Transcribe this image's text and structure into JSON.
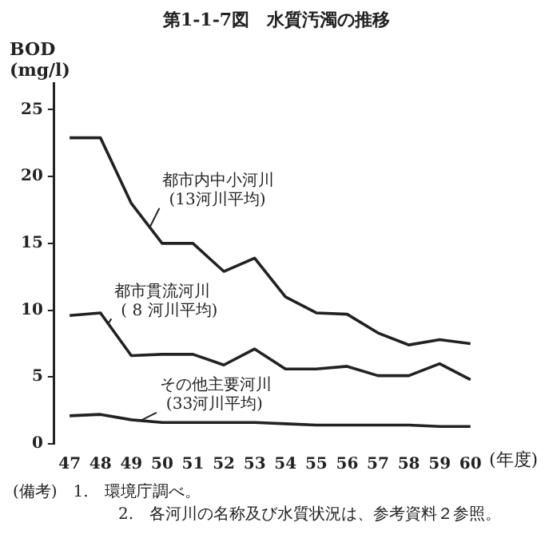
{
  "chart_data": {
    "type": "line",
    "title": "第1-1-7図　水質汚濁の推移",
    "ylabel": "BOD\n(mg/l)",
    "xlabel": "(年度)",
    "categories": [
      "47",
      "48",
      "49",
      "50",
      "51",
      "52",
      "53",
      "54",
      "55",
      "56",
      "57",
      "58",
      "59",
      "60"
    ],
    "series": [
      {
        "name": "都市内中小河川\n(13河川平均)",
        "color": "#222222",
        "values": [
          22.9,
          22.9,
          18,
          15,
          15,
          12.9,
          13.9,
          11,
          9.8,
          9.7,
          8.3,
          7.4,
          7.8,
          7.5
        ]
      },
      {
        "name": "都市貫流河川\n( 8 河川平均)",
        "color": "#222222",
        "values": [
          9.6,
          9.8,
          6.6,
          6.7,
          6.7,
          5.9,
          7.1,
          5.6,
          5.6,
          5.8,
          5.1,
          5.1,
          6.0,
          4.8
        ]
      },
      {
        "name": "その他主要河川\n(33河川平均)",
        "color": "#222222",
        "values": [
          2.1,
          2.2,
          1.8,
          1.6,
          1.6,
          1.6,
          1.6,
          1.5,
          1.4,
          1.4,
          1.4,
          1.4,
          1.3,
          1.3
        ]
      }
    ],
    "ylim": [
      0,
      27
    ],
    "yticks": [
      0,
      5,
      10,
      15,
      20,
      25
    ],
    "grid": false,
    "legend": false,
    "marker": "none",
    "line_style": "solid",
    "annotations": [
      "(備考)　1.　環境庁調べ。",
      "2.　各河川の名称及び水質状況は、参考資料２参照。"
    ]
  }
}
